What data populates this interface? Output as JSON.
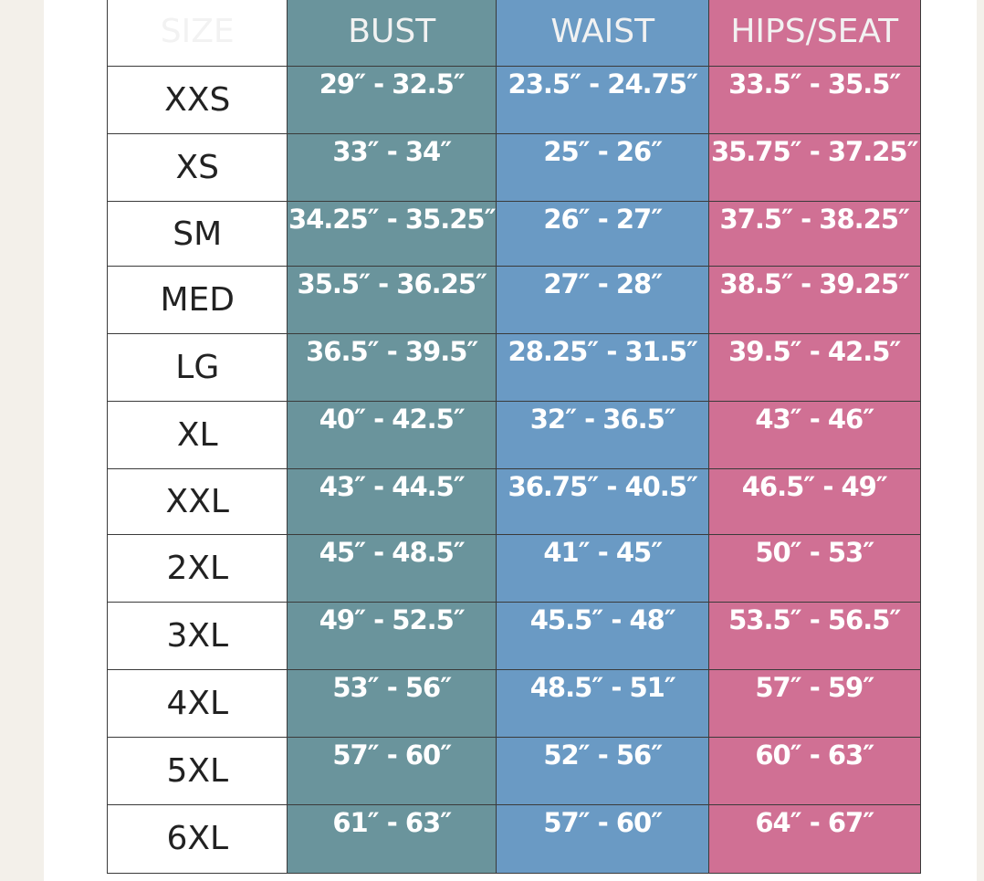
{
  "table": {
    "headers": [
      "SIZE",
      "BUST",
      "WAIST",
      "HIPS/SEAT"
    ],
    "rows": [
      [
        "XXS",
        "29″ - 32.5″",
        "23.5″ - 24.75″",
        "33.5″ - 35.5″"
      ],
      [
        "XS",
        "33″ - 34″",
        "25″ - 26″",
        "35.75″ - 37.25″"
      ],
      [
        "SM",
        "34.25″ - 35.25″",
        "26″ - 27″",
        "37.5″ - 38.25″"
      ],
      [
        "MED",
        "35.5″ - 36.25″",
        "27″ - 28″",
        "38.5″ - 39.25″"
      ],
      [
        "LG",
        "36.5″ - 39.5″",
        "28.25″ - 31.5″",
        "39.5″ - 42.5″"
      ],
      [
        "XL",
        "40″ - 42.5″",
        "32″ - 36.5″",
        "43″ - 46″"
      ],
      [
        "XXL",
        "43″ - 44.5″",
        "36.75″ - 40.5″",
        "46.5″ - 49″"
      ],
      [
        "2XL",
        "45″ - 48.5″",
        "41″ - 45″",
        "50″ - 53″"
      ],
      [
        "3XL",
        "49″ - 52.5″",
        "45.5″ - 48″",
        "53.5″ - 56.5″"
      ],
      [
        "4XL",
        "53″ - 56″",
        "48.5″ - 51″",
        "57″ - 59″"
      ],
      [
        "5XL",
        "57″ - 60″",
        "52″ - 56″",
        "60″ - 63″"
      ],
      [
        "6XL",
        "61″ - 63″",
        "57″ - 60″",
        "64″ - 67″"
      ]
    ]
  }
}
